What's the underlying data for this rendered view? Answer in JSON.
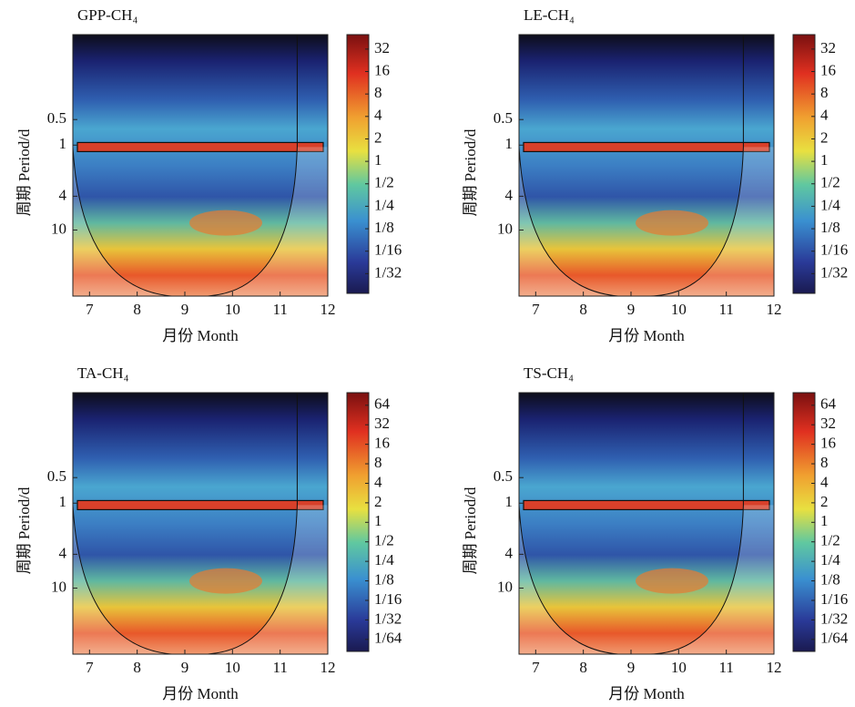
{
  "chart_data": [
    {
      "type": "heatmap",
      "title": "GPP-CH₄",
      "xlabel": "月份 Month",
      "ylabel": "周期 Period/d",
      "xlim": [
        6.65,
        12
      ],
      "xticks": [
        7,
        8,
        9,
        10,
        11,
        12
      ],
      "ylim": [
        0.05,
        60
      ],
      "yticks": [
        0.5,
        1,
        4,
        10
      ],
      "y_scale": "log",
      "colormap": "jet",
      "clim": [
        0.017,
        50
      ],
      "cticks": [
        32,
        16,
        8,
        4,
        2,
        1,
        {
          "value": 0.5,
          "label": "1/2"
        },
        {
          "value": 0.25,
          "label": "1/4"
        },
        {
          "value": 0.125,
          "label": "1/8"
        },
        {
          "value": 0.0625,
          "label": "1/16"
        },
        {
          "value": 0.03125,
          "label": "1/32"
        }
      ]
    },
    {
      "type": "heatmap",
      "title": "LE-CH₄",
      "xlabel": "月份 Month",
      "ylabel": "周期 Period/d",
      "xlim": [
        6.65,
        12
      ],
      "xticks": [
        7,
        8,
        9,
        10,
        11,
        12
      ],
      "ylim": [
        0.05,
        60
      ],
      "yticks": [
        0.5,
        1,
        4,
        10
      ],
      "y_scale": "log",
      "colormap": "jet",
      "clim": [
        0.017,
        50
      ],
      "cticks": [
        32,
        16,
        8,
        4,
        2,
        1,
        {
          "value": 0.5,
          "label": "1/2"
        },
        {
          "value": 0.25,
          "label": "1/4"
        },
        {
          "value": 0.125,
          "label": "1/8"
        },
        {
          "value": 0.0625,
          "label": "1/16"
        },
        {
          "value": 0.03125,
          "label": "1/32"
        }
      ]
    },
    {
      "type": "heatmap",
      "title": "TA-CH₄",
      "xlabel": "月份 Month",
      "ylabel": "周期 Period/d",
      "xlim": [
        6.65,
        12
      ],
      "xticks": [
        7,
        8,
        9,
        10,
        11,
        12
      ],
      "ylim": [
        0.05,
        60
      ],
      "yticks": [
        0.5,
        1,
        4,
        10
      ],
      "y_scale": "log",
      "colormap": "jet",
      "clim": [
        0.0102,
        100
      ],
      "cticks": [
        64,
        32,
        16,
        8,
        4,
        2,
        1,
        {
          "value": 0.5,
          "label": "1/2"
        },
        {
          "value": 0.25,
          "label": "1/4"
        },
        {
          "value": 0.125,
          "label": "1/8"
        },
        {
          "value": 0.0625,
          "label": "1/16"
        },
        {
          "value": 0.03125,
          "label": "1/32"
        },
        {
          "value": 0.015625,
          "label": "1/64"
        }
      ]
    },
    {
      "type": "heatmap",
      "title": "TS-CH₄",
      "xlabel": "月份 Month",
      "ylabel": "周期 Period/d",
      "xlim": [
        6.65,
        12
      ],
      "xticks": [
        7,
        8,
        9,
        10,
        11,
        12
      ],
      "ylim": [
        0.05,
        60
      ],
      "yticks": [
        0.5,
        1,
        4,
        10
      ],
      "y_scale": "log",
      "colormap": "jet",
      "clim": [
        0.0102,
        100
      ],
      "cticks": [
        64,
        32,
        16,
        8,
        4,
        2,
        1,
        {
          "value": 0.5,
          "label": "1/2"
        },
        {
          "value": 0.25,
          "label": "1/4"
        },
        {
          "value": 0.125,
          "label": "1/8"
        },
        {
          "value": 0.0625,
          "label": "1/16"
        },
        {
          "value": 0.03125,
          "label": "1/32"
        },
        {
          "value": 0.015625,
          "label": "1/64"
        }
      ]
    }
  ]
}
